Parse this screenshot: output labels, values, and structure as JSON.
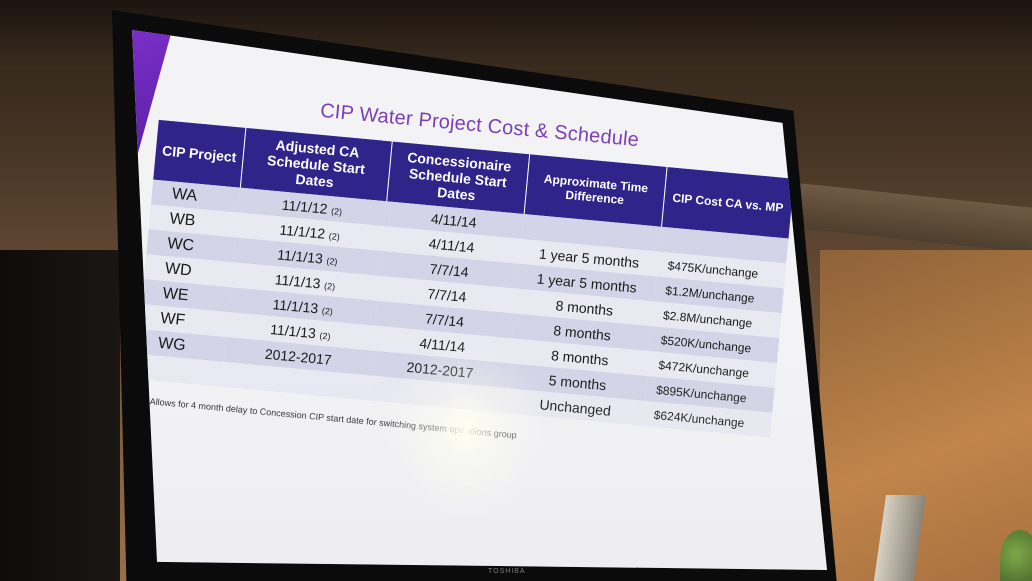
{
  "slide": {
    "title": "CIP Water Project Cost & Schedule",
    "headers": [
      "CIP Project",
      "Adjusted CA Schedule Start Dates",
      "Concessionaire Schedule Start Dates",
      "Approximate Time Difference",
      "CIP Cost CA vs. MP"
    ],
    "rows": [
      {
        "project": "WA",
        "adjusted": "11/1/12",
        "ref": "(2)",
        "concession": "4/11/14",
        "diff": "",
        "cost": ""
      },
      {
        "project": "WB",
        "adjusted": "11/1/12",
        "ref": "(2)",
        "concession": "4/11/14",
        "diff": "1 year 5 months",
        "cost": "$475K/unchange"
      },
      {
        "project": "WC",
        "adjusted": "11/1/13",
        "ref": "(2)",
        "concession": "7/7/14",
        "diff": "1 year 5 months",
        "cost": "$1.2M/unchange"
      },
      {
        "project": "WD",
        "adjusted": "11/1/13",
        "ref": "(2)",
        "concession": "7/7/14",
        "diff": "8 months",
        "cost": "$2.8M/unchange"
      },
      {
        "project": "WE",
        "adjusted": "11/1/13",
        "ref": "(2)",
        "concession": "7/7/14",
        "diff": "8 months",
        "cost": "$520K/unchange"
      },
      {
        "project": "WF",
        "adjusted": "11/1/13",
        "ref": "(2)",
        "concession": "4/11/14",
        "diff": "8 months",
        "cost": "$472K/unchange"
      },
      {
        "project": "WG",
        "adjusted": "2012-2017",
        "ref": "",
        "concession": "2012-2017",
        "diff": "5 months",
        "cost": "$895K/unchange"
      },
      {
        "project": "",
        "adjusted": "",
        "ref": "",
        "concession": "",
        "diff": "Unchanged",
        "cost": "$624K/unchange"
      }
    ],
    "footnote": "(2) Allows for 4 month delay to Concession CIP start date for switching system operations group"
  },
  "monitor": {
    "brand": "TOSHIBA"
  },
  "colors": {
    "header_bg": "#2e2489",
    "title_text": "#7a3fb8",
    "accent": "#7a2fc7",
    "row_odd": "#d3d4e7",
    "row_even": "#e9e9f2"
  }
}
